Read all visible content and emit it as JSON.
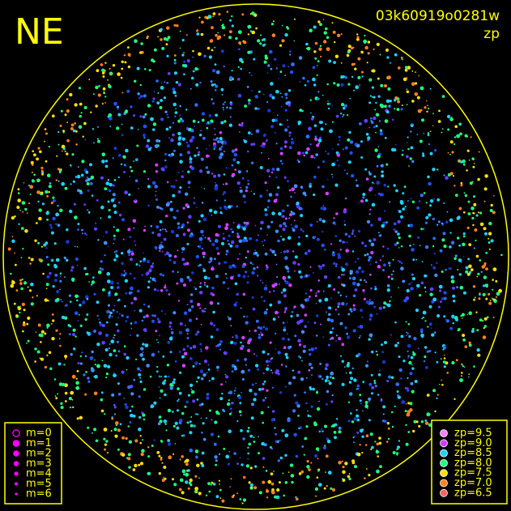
{
  "header": {
    "corner": "NE",
    "frame_id": "03k60919o0281w",
    "quantity": "zp"
  },
  "magnitude_legend": {
    "color": "#ff00ff",
    "items": [
      "m=0",
      "m=1",
      "m=2",
      "m=3",
      "m=4",
      "m=5",
      "m=6"
    ]
  },
  "zp_legend": {
    "items": [
      {
        "label": "zp=9.5",
        "color": "#ff80ff"
      },
      {
        "label": "zp=9.0",
        "color": "#d040ff"
      },
      {
        "label": "zp=8.5",
        "color": "#20d0ff"
      },
      {
        "label": "zp=8.0",
        "color": "#20ff80"
      },
      {
        "label": "zp=7.5",
        "color": "#ffe000"
      },
      {
        "label": "zp=7.0",
        "color": "#ff8020"
      },
      {
        "label": "zp=6.5",
        "color": "#ff6060"
      }
    ]
  }
}
